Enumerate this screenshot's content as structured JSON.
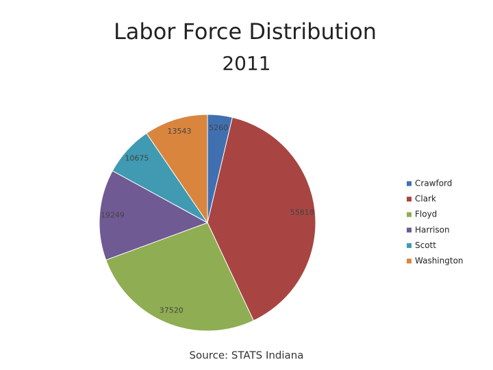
{
  "chart_data": {
    "type": "pie",
    "title": "Labor Force Distribution",
    "subtitle": "2011",
    "categories": [
      "Crawford",
      "Clark",
      "Floyd",
      "Harrison",
      "Scott",
      "Washington"
    ],
    "values": [
      5260,
      55818,
      37520,
      19249,
      10675,
      13543
    ],
    "colors": [
      "#4070b0",
      "#a84542",
      "#8fad52",
      "#705a93",
      "#3f9ab2",
      "#d9853e"
    ],
    "legend": "right",
    "source": "Source:  STATS Indiana"
  }
}
